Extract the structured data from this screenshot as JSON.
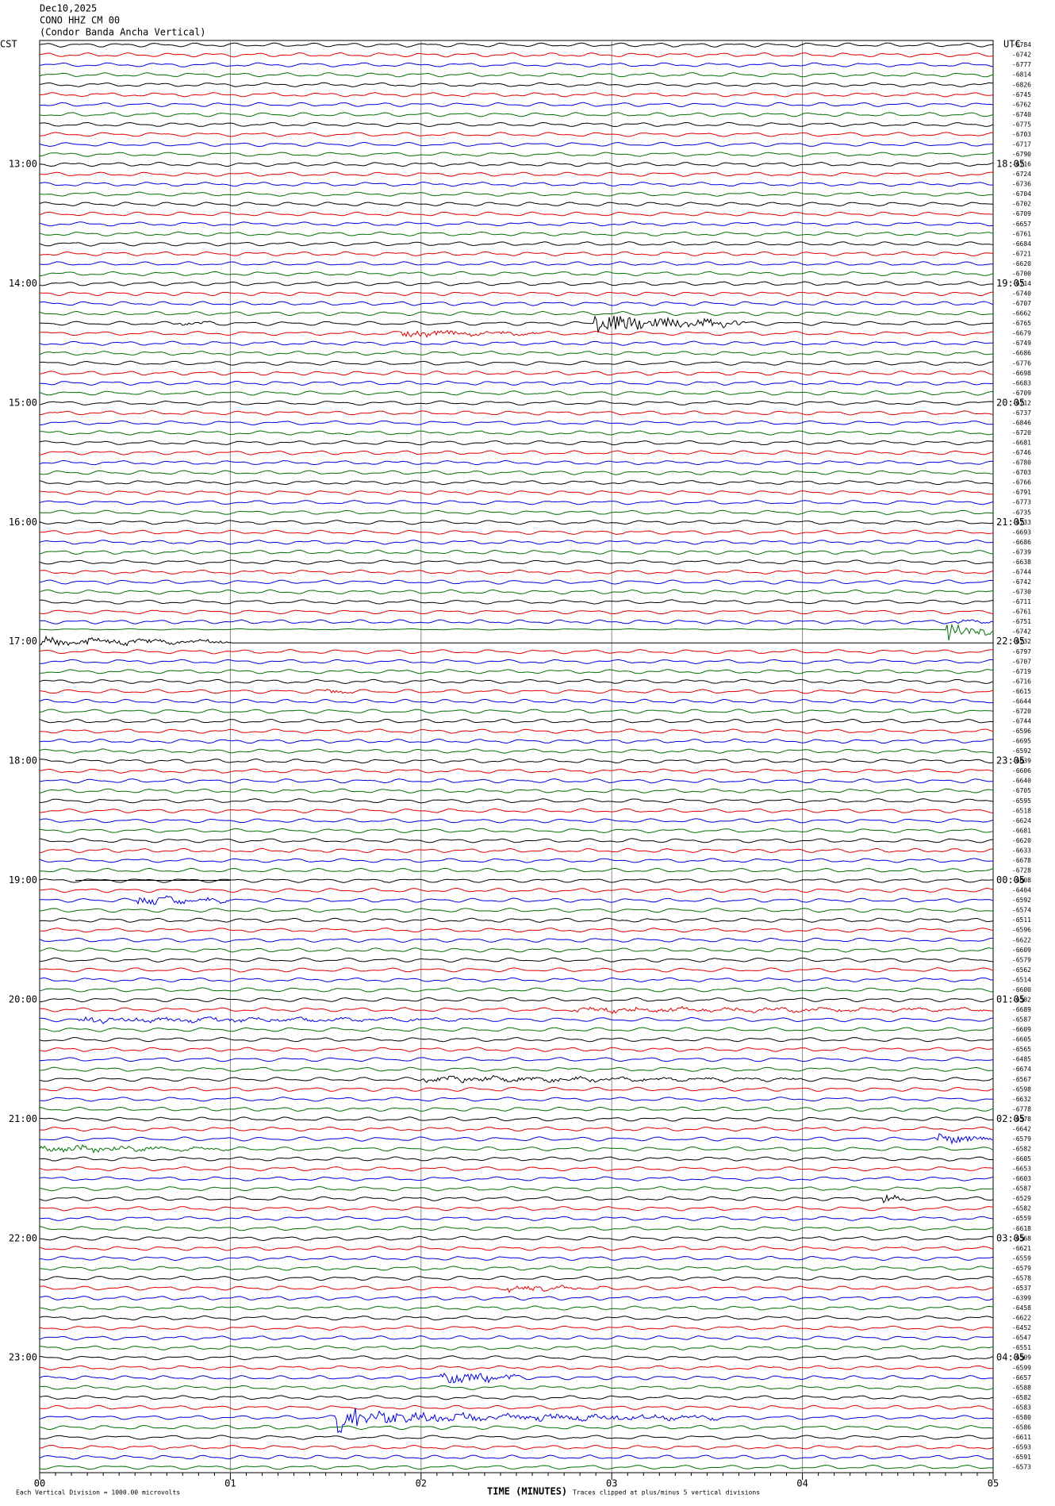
{
  "header": {
    "date": "Dec10,2025",
    "station": "CONO HHZ CM 00",
    "description": "(Condor Banda Ancha Vertical)"
  },
  "left_zone": "CST",
  "right_zone": "UTC",
  "left_hour_labels": [
    "13:00",
    "14:00",
    "15:00",
    "16:00",
    "17:00",
    "18:00",
    "19:00",
    "20:00",
    "21:00",
    "22:00",
    "23:00"
  ],
  "right_hour_labels": [
    "18:05",
    "19:05",
    "20:05",
    "21:05",
    "22:05",
    "23:05",
    "00:05",
    "01:05",
    "02:05",
    "03:05",
    "04:05"
  ],
  "trace_labels": [
    "-6784",
    "-6742",
    "-6777",
    "-6814",
    "-6826",
    "-6745",
    "-6762",
    "-6740",
    "-6775",
    "-6703",
    "-6717",
    "-6790",
    "-6716",
    "-6724",
    "-6736",
    "-6704",
    "-6702",
    "-6709",
    "-6657",
    "-6761",
    "-6684",
    "-6721",
    "-6620",
    "-6700",
    "-6714",
    "-6740",
    "-6707",
    "-6662",
    "-6765",
    "-6679",
    "-6749",
    "-6686",
    "-6776",
    "-6698",
    "-6683",
    "-6709",
    "-6712",
    "-6737",
    "-6846",
    "-6720",
    "-6681",
    "-6746",
    "-6780",
    "-6703",
    "-6766",
    "-6791",
    "-6773",
    "-6735",
    "-6733",
    "-6693",
    "-6686",
    "-6739",
    "-6638",
    "-6744",
    "-6742",
    "-6730",
    "-6711",
    "-6761",
    "-6751",
    "-6742",
    "-6732",
    "-6797",
    "-6707",
    "-6719",
    "-6716",
    "-6615",
    "-6644",
    "-6720",
    "-6744",
    "-6596",
    "-6695",
    "-6592",
    "-6639",
    "-6606",
    "-6640",
    "-6705",
    "-6595",
    "-6518",
    "-6624",
    "-6681",
    "-6620",
    "-6633",
    "-6678",
    "-6728",
    "-6608",
    "-6404",
    "-6592",
    "-6574",
    "-6511",
    "-6596",
    "-6622",
    "-6609",
    "-6579",
    "-6562",
    "-6514",
    "-6600",
    "-6582",
    "-6689",
    "-6587",
    "-6609",
    "-6605",
    "-6565",
    "-6485",
    "-6674",
    "-6567",
    "-6598",
    "-6632",
    "-6778",
    "-6578",
    "-6642",
    "-6579",
    "-6582",
    "-6605",
    "-6653",
    "-6603",
    "-6587",
    "-6529",
    "-6582",
    "-6559",
    "-6618",
    "-6568",
    "-6621",
    "-6559",
    "-6579",
    "-6578",
    "-6537",
    "-6399",
    "-6458",
    "-6622",
    "-6452",
    "-6547",
    "-6551",
    "-6509",
    "-6599",
    "-6657",
    "-6588",
    "-6582",
    "-6583",
    "-6580",
    "-6586",
    "-6611",
    "-6593",
    "-6591",
    "-6573"
  ],
  "x_axis": {
    "title": "TIME (MINUTES)",
    "ticks": [
      "00",
      "01",
      "02",
      "03",
      "04",
      "05"
    ]
  },
  "footer": {
    "scale_note": "Each Vertical Division = 1000.00 microvolts",
    "clip_note": "Traces clipped at plus/minus 5 vertical divisions"
  }
}
